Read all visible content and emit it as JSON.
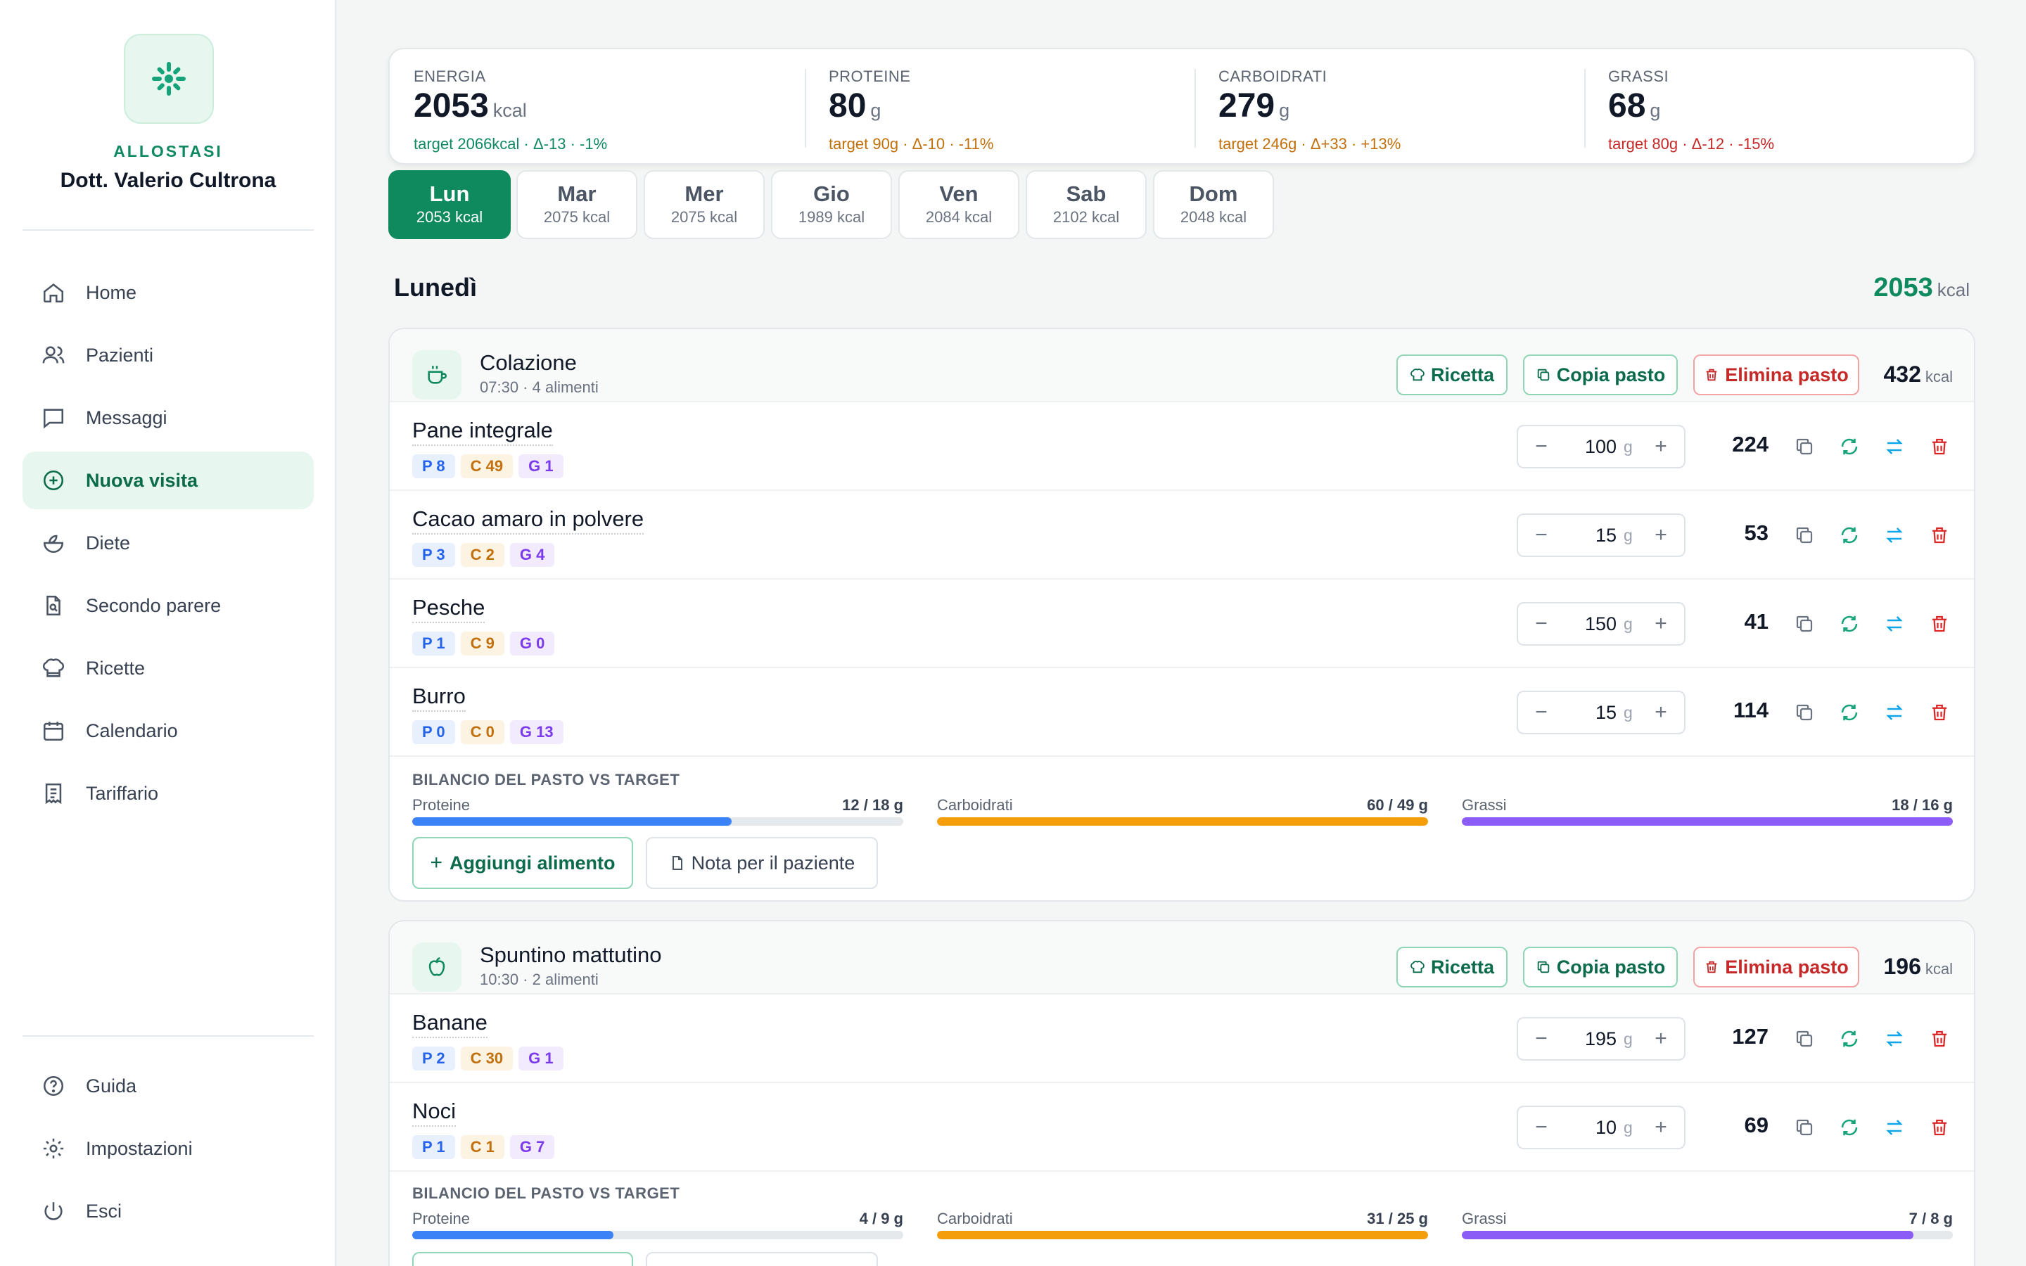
{
  "sidebar": {
    "brand": "ALLOSTASI",
    "doctor": "Dott. Valerio Cultrona",
    "nav": [
      {
        "label": "Home",
        "icon": "home-icon"
      },
      {
        "label": "Pazienti",
        "icon": "users-icon"
      },
      {
        "label": "Messaggi",
        "icon": "message-icon"
      },
      {
        "label": "Nuova visita",
        "icon": "plus-circle-icon"
      },
      {
        "label": "Diete",
        "icon": "salad-icon"
      },
      {
        "label": "Secondo parere",
        "icon": "file-search-icon"
      },
      {
        "label": "Ricette",
        "icon": "chef-hat-icon"
      },
      {
        "label": "Calendario",
        "icon": "calendar-icon"
      },
      {
        "label": "Tariffario",
        "icon": "receipt-icon"
      }
    ],
    "bottom": [
      {
        "label": "Guida",
        "icon": "help-icon"
      },
      {
        "label": "Impostazioni",
        "icon": "gear-icon"
      },
      {
        "label": "Esci",
        "icon": "power-icon"
      }
    ]
  },
  "summary": [
    {
      "label": "ENERGIA",
      "value": "2053",
      "unit": "kcal",
      "target": "target 2066kcal · Δ-13 · -1%",
      "color": "#0f8a5f"
    },
    {
      "label": "PROTEINE",
      "value": "80",
      "unit": "g",
      "target": "target 90g · Δ-10 · -11%",
      "color": "#c2700c"
    },
    {
      "label": "CARBOIDRATI",
      "value": "279",
      "unit": "g",
      "target": "target 246g · Δ+33 · +13%",
      "color": "#c2700c"
    },
    {
      "label": "GRASSI",
      "value": "68",
      "unit": "g",
      "target": "target 80g · Δ-12 · -15%",
      "color": "#c62828"
    }
  ],
  "days": [
    {
      "name": "Lun",
      "kcal": "2053 kcal"
    },
    {
      "name": "Mar",
      "kcal": "2075 kcal"
    },
    {
      "name": "Mer",
      "kcal": "2075 kcal"
    },
    {
      "name": "Gio",
      "kcal": "1989 kcal"
    },
    {
      "name": "Ven",
      "kcal": "2084 kcal"
    },
    {
      "name": "Sab",
      "kcal": "2102 kcal"
    },
    {
      "name": "Dom",
      "kcal": "2048 kcal"
    }
  ],
  "day": {
    "title": "Lunedì",
    "total": "2053",
    "unit": "kcal"
  },
  "buttons": {
    "recipe": "Ricetta",
    "copy": "Copia pasto",
    "delete": "Elimina pasto",
    "add": "Aggiungi alimento",
    "note": "Nota per il paziente",
    "grams": "g",
    "kcal_unit": "kcal",
    "balance_title": "BILANCIO DEL PASTO VS TARGET"
  },
  "meals": [
    {
      "name": "Colazione",
      "sub": "07:30 · 4 alimenti",
      "kcal": "432",
      "icon": "coffee-icon",
      "foods": [
        {
          "name": "Pane integrale",
          "p": "P 8",
          "c": "C 49",
          "g": "G 1",
          "qty": "100",
          "kcal": "224"
        },
        {
          "name": "Cacao amaro in polvere",
          "p": "P 3",
          "c": "C 2",
          "g": "G 4",
          "qty": "15",
          "kcal": "53"
        },
        {
          "name": "Pesche",
          "p": "P 1",
          "c": "C 9",
          "g": "G 0",
          "qty": "150",
          "kcal": "41"
        },
        {
          "name": "Burro",
          "p": "P 0",
          "c": "C 0",
          "g": "G 13",
          "qty": "15",
          "kcal": "114"
        }
      ],
      "balance": [
        {
          "label": "Proteine",
          "value": "12 / 18 g",
          "ratio": 0.65,
          "color": "#3b82f6"
        },
        {
          "label": "Carboidrati",
          "value": "60 / 49 g",
          "ratio": 1.0,
          "color": "#f59e0b"
        },
        {
          "label": "Grassi",
          "value": "18 / 16 g",
          "ratio": 1.0,
          "color": "#8b5cf6"
        }
      ]
    },
    {
      "name": "Spuntino mattutino",
      "sub": "10:30 · 2 alimenti",
      "kcal": "196",
      "icon": "apple-icon",
      "foods": [
        {
          "name": "Banane",
          "p": "P 2",
          "c": "C 30",
          "g": "G 1",
          "qty": "195",
          "kcal": "127"
        },
        {
          "name": "Noci",
          "p": "P 1",
          "c": "C 1",
          "g": "G 7",
          "qty": "10",
          "kcal": "69"
        }
      ],
      "balance": [
        {
          "label": "Proteine",
          "value": "4 / 9 g",
          "ratio": 0.41,
          "color": "#3b82f6"
        },
        {
          "label": "Carboidrati",
          "value": "31 / 25 g",
          "ratio": 1.0,
          "color": "#f59e0b"
        },
        {
          "label": "Grassi",
          "value": "7 / 8 g",
          "ratio": 0.92,
          "color": "#8b5cf6"
        }
      ]
    }
  ]
}
